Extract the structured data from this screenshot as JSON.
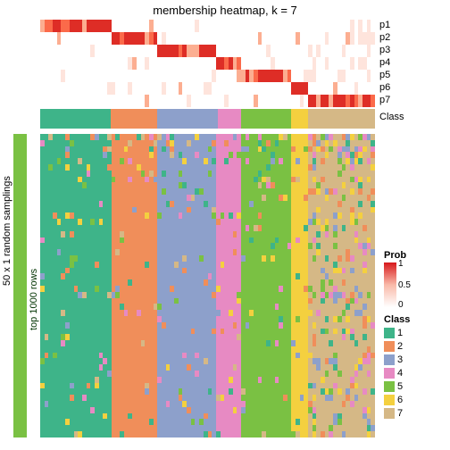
{
  "title": "membership heatmap, k = 7",
  "sampling_label": "50 x 1 random samplings",
  "rows_label": "top 1000 rows",
  "class_label": "Class",
  "p_labels": [
    "p1",
    "p2",
    "p3",
    "p4",
    "p5",
    "p6",
    "p7"
  ],
  "prob_legend": {
    "title": "Prob",
    "ticks": [
      "1",
      "0.5",
      "0"
    ],
    "color_high": "#d7191c",
    "color_mid": "#f9b9a8",
    "color_low": "#ffffff"
  },
  "class_colors": {
    "1": "#3eb489",
    "2": "#f08e5a",
    "3": "#8da0cb",
    "4": "#e78ac3",
    "5": "#7ac143",
    "6": "#f4d03f",
    "7": "#d5b886"
  },
  "class_legend": {
    "title": "Class",
    "items": [
      "1",
      "2",
      "3",
      "4",
      "5",
      "6",
      "7"
    ]
  },
  "class_band_segments": [
    {
      "class": "1",
      "width": 21
    },
    {
      "class": "2",
      "width": 14
    },
    {
      "class": "3",
      "width": 18
    },
    {
      "class": "4",
      "width": 7
    },
    {
      "class": "5",
      "width": 15
    },
    {
      "class": "6",
      "width": 5
    },
    {
      "class": "7",
      "width": 20
    }
  ],
  "sampling_bar_color": "#7ac143",
  "prob_row_colors": {
    "low": "#ffffff",
    "faint": "#fee4dc",
    "light": "#fcae91",
    "med": "#fb6a4a",
    "high": "#de2d26"
  },
  "body_noise_probability": 0.08,
  "n_body_rows": 50,
  "n_columns": 80
}
